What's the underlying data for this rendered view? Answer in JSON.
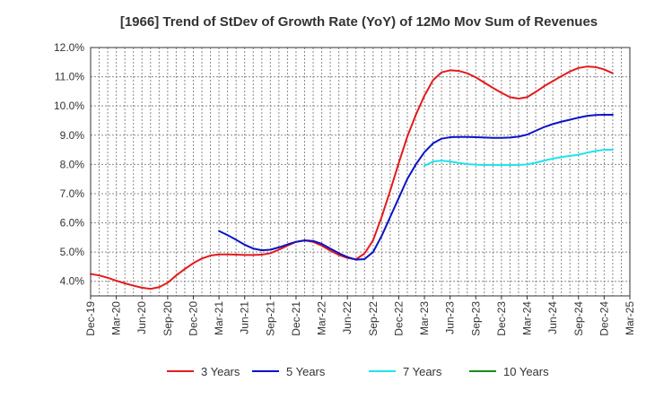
{
  "chart_data": {
    "type": "line",
    "title": "[1966]  Trend of StDev of Growth Rate (YoY) of 12Mo Mov Sum of Revenues",
    "xlabel": "",
    "ylabel": "",
    "ylim": [
      3.5,
      12.0
    ],
    "y_ticks": [
      4.0,
      5.0,
      6.0,
      7.0,
      8.0,
      9.0,
      10.0,
      11.0,
      12.0
    ],
    "y_tick_labels": [
      "4.0%",
      "5.0%",
      "6.0%",
      "7.0%",
      "8.0%",
      "9.0%",
      "10.0%",
      "11.0%",
      "12.0%"
    ],
    "x_tick_labels": [
      "Dec-19",
      "Mar-20",
      "Jun-20",
      "Sep-20",
      "Dec-20",
      "Mar-21",
      "Jun-21",
      "Sep-21",
      "Dec-21",
      "Mar-22",
      "Jun-22",
      "Sep-22",
      "Dec-22",
      "Mar-23",
      "Jun-23",
      "Sep-23",
      "Dec-23",
      "Mar-24",
      "Jun-24",
      "Sep-24",
      "Dec-24",
      "Mar-25"
    ],
    "grid": true,
    "legend_position": "bottom",
    "series": [
      {
        "name": "3 Years",
        "color": "#e41a1c",
        "values": [
          4.25,
          4.2,
          4.12,
          4.02,
          3.93,
          3.85,
          3.78,
          3.74,
          3.8,
          3.95,
          4.2,
          4.42,
          4.62,
          4.78,
          4.88,
          4.92,
          4.92,
          4.91,
          4.9,
          4.9,
          4.91,
          4.96,
          5.08,
          5.22,
          5.35,
          5.4,
          5.35,
          5.22,
          5.05,
          4.9,
          4.8,
          4.75,
          4.95,
          5.4,
          6.2,
          7.1,
          8.05,
          8.95,
          9.7,
          10.35,
          10.88,
          11.15,
          11.22,
          11.2,
          11.12,
          10.98,
          10.8,
          10.62,
          10.45,
          10.3,
          10.25,
          10.3,
          10.48,
          10.68,
          10.85,
          11.02,
          11.18,
          11.3,
          11.35,
          11.33,
          11.25,
          11.12
        ]
      },
      {
        "name": "5 Years",
        "color": "#0a14c4",
        "values": [
          null,
          null,
          null,
          null,
          null,
          null,
          null,
          null,
          null,
          null,
          null,
          null,
          null,
          null,
          null,
          5.72,
          5.58,
          5.42,
          5.25,
          5.12,
          5.06,
          5.08,
          5.16,
          5.26,
          5.35,
          5.4,
          5.38,
          5.28,
          5.12,
          4.96,
          4.83,
          4.74,
          4.76,
          5.0,
          5.55,
          6.2,
          6.85,
          7.5,
          8.0,
          8.42,
          8.72,
          8.88,
          8.93,
          8.94,
          8.94,
          8.93,
          8.92,
          8.91,
          8.91,
          8.92,
          8.95,
          9.02,
          9.15,
          9.28,
          9.38,
          9.46,
          9.53,
          9.6,
          9.66,
          9.69,
          9.7,
          9.7
        ]
      },
      {
        "name": "7 Years",
        "color": "#1ee4ee",
        "values": [
          null,
          null,
          null,
          null,
          null,
          null,
          null,
          null,
          null,
          null,
          null,
          null,
          null,
          null,
          null,
          null,
          null,
          null,
          null,
          null,
          null,
          null,
          null,
          null,
          null,
          null,
          null,
          null,
          null,
          null,
          null,
          null,
          null,
          null,
          null,
          null,
          null,
          null,
          null,
          7.95,
          8.1,
          8.13,
          8.1,
          8.05,
          8.01,
          7.99,
          7.98,
          7.98,
          7.98,
          7.98,
          7.98,
          8.0,
          8.06,
          8.13,
          8.2,
          8.25,
          8.29,
          8.33,
          8.4,
          8.46,
          8.5,
          8.5
        ]
      },
      {
        "name": "10 Years",
        "color": "#1a8c1a",
        "values": []
      }
    ]
  }
}
